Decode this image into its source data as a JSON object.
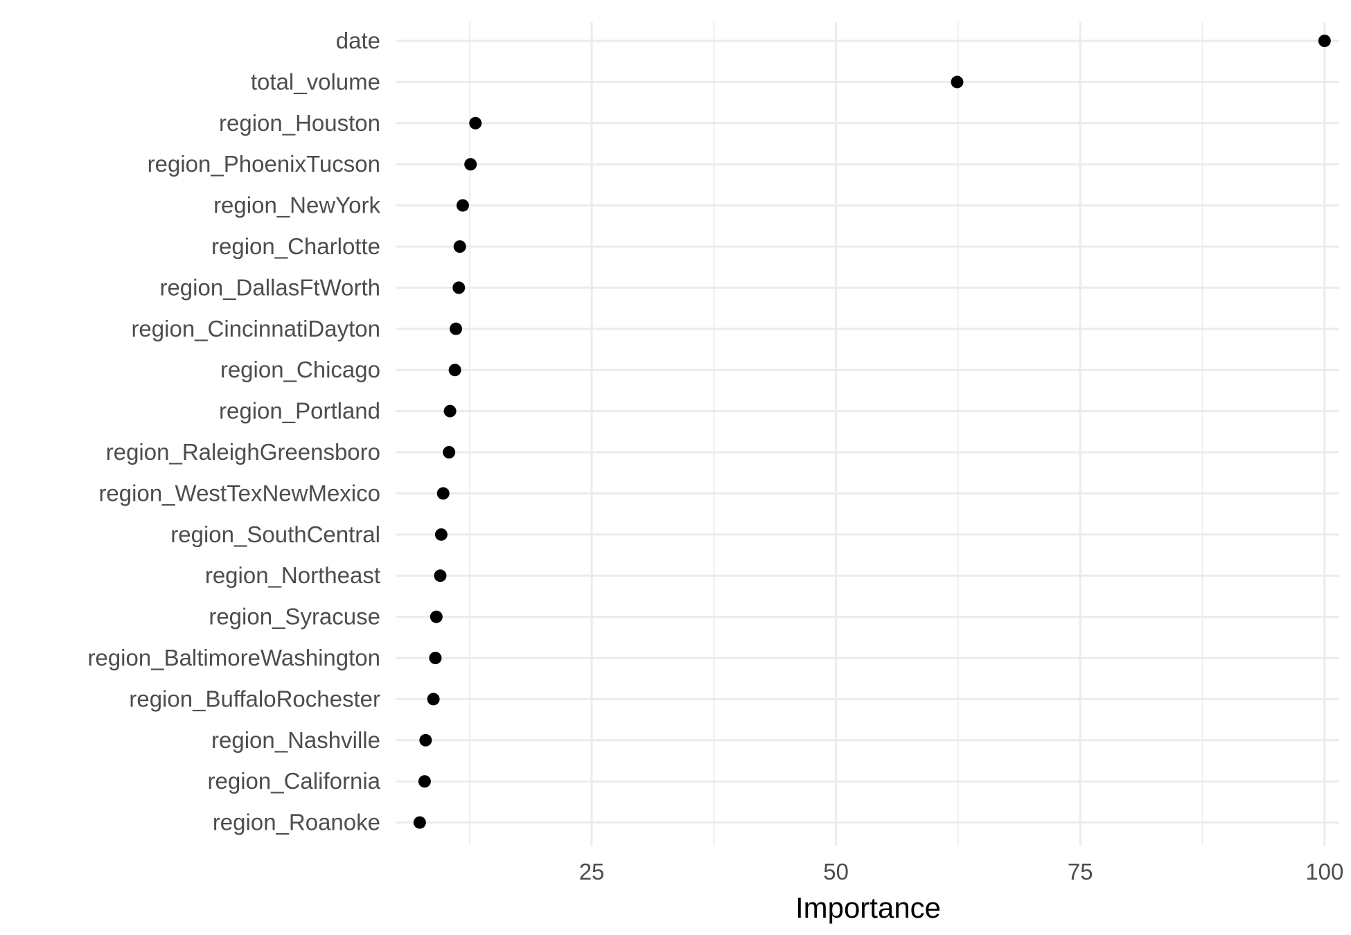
{
  "chart_data": {
    "type": "scatter",
    "title": "",
    "xlabel": "Importance",
    "ylabel": "",
    "xlim": [
      5.0,
      101.5
    ],
    "x_ticks": [
      25,
      50,
      75,
      100
    ],
    "x_tick_labels": [
      "25",
      "50",
      "75",
      "100"
    ],
    "grid": true,
    "legend": "none",
    "point_color": "#000000",
    "grid_color": "#ebebeb",
    "categories": [
      "date",
      "total_volume",
      "region_Houston",
      "region_PhoenixTucson",
      "region_NewYork",
      "region_Charlotte",
      "region_DallasFtWorth",
      "region_CincinnatiDayton",
      "region_Chicago",
      "region_Portland",
      "region_RaleighGreensboro",
      "region_WestTexNewMexico",
      "region_SouthCentral",
      "region_Northeast",
      "region_Syracuse",
      "region_BaltimoreWashington",
      "region_BuffaloRochester",
      "region_Nashville",
      "region_California",
      "region_Roanoke"
    ],
    "values": [
      100,
      62.4,
      13.1,
      12.6,
      11.8,
      11.5,
      11.4,
      11.1,
      11.0,
      10.5,
      10.4,
      9.8,
      9.6,
      9.5,
      9.1,
      9.0,
      8.8,
      8.0,
      7.9,
      7.4
    ]
  }
}
